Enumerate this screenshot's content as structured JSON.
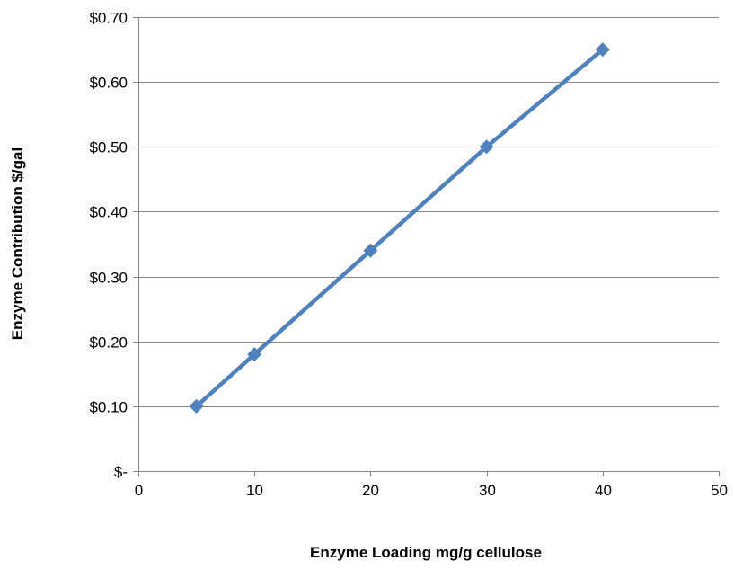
{
  "chart_data": {
    "type": "scatter",
    "title": "",
    "xlabel": "Enzyme Loading mg/g cellulose",
    "ylabel": "Enzyme Contribution $/gal",
    "xlim": [
      0,
      50
    ],
    "ylim": [
      0,
      0.7
    ],
    "x_ticks": [
      0,
      10,
      20,
      30,
      40,
      50
    ],
    "x_tick_labels": [
      "0",
      "10",
      "20",
      "30",
      "40",
      "50"
    ],
    "y_ticks": [
      0,
      0.1,
      0.2,
      0.3,
      0.4,
      0.5,
      0.6,
      0.7
    ],
    "y_tick_labels": [
      "$-",
      "$0.10",
      "$0.20",
      "$0.30",
      "$0.40",
      "$0.50",
      "$0.60",
      "$0.70"
    ],
    "grid": "horizontal",
    "legend": "none",
    "series": [
      {
        "x": [
          5,
          10,
          20,
          30,
          40
        ],
        "y": [
          0.1,
          0.18,
          0.34,
          0.5,
          0.65
        ],
        "color": "#4F81BD",
        "marker": "diamond",
        "line": "straight"
      }
    ]
  },
  "colors": {
    "series": "#4F81BD",
    "gridline": "#868686",
    "axis": "#868686"
  }
}
